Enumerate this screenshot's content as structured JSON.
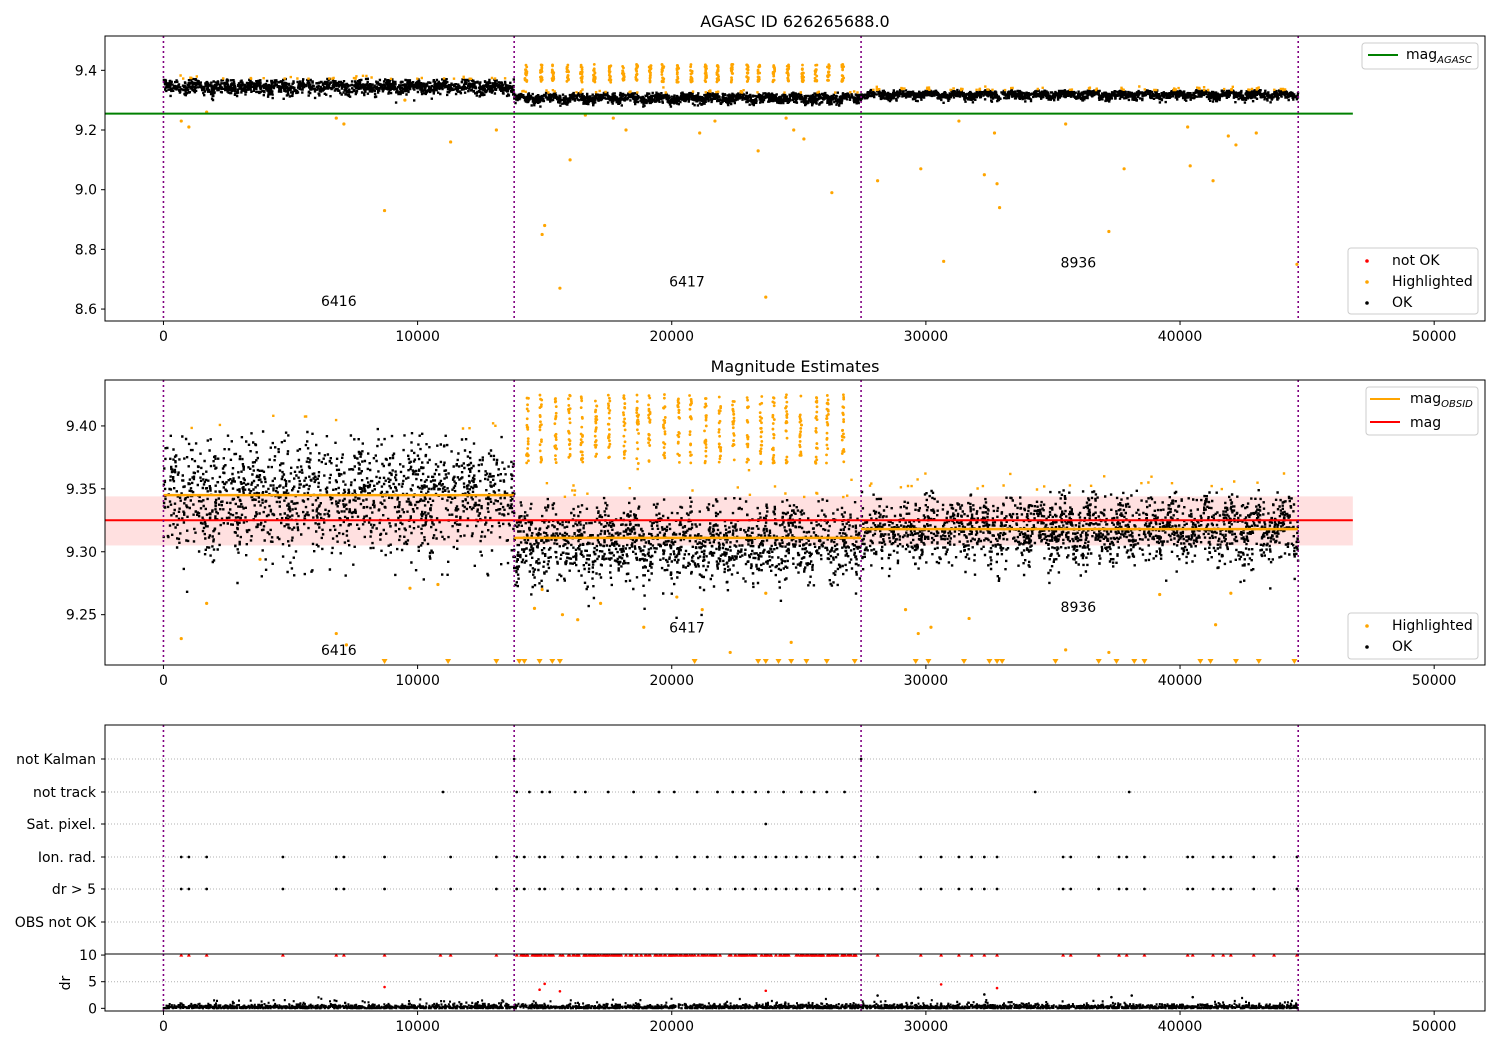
{
  "chart_data": [
    {
      "type": "scatter",
      "title": "AGASC ID 626265688.0",
      "xlabel": "",
      "ylabel": "",
      "xlim": [
        -2300,
        52000
      ],
      "ylim": [
        8.56,
        9.515
      ],
      "xticks": [
        "0",
        "10000",
        "20000",
        "30000",
        "40000",
        "50000"
      ],
      "xtick_values": [
        0,
        10000,
        20000,
        30000,
        40000,
        50000
      ],
      "yticks": [
        "8.6",
        "8.8",
        "9.0",
        "9.2",
        "9.4"
      ],
      "ytick_values": [
        8.6,
        8.8,
        9.0,
        9.2,
        9.4
      ],
      "obs_boundaries": [
        0,
        13800,
        27450,
        44650
      ],
      "obsids": [
        {
          "label": "6416",
          "x": 6900,
          "y": 8.61
        },
        {
          "label": "6417",
          "x": 20600,
          "y": 8.675
        },
        {
          "label": "8936",
          "x": 36000,
          "y": 8.74
        }
      ],
      "segments": [
        {
          "x0": 0,
          "x1": 13800,
          "center": 9.345,
          "spread": 0.022
        },
        {
          "x0": 13800,
          "x1": 27450,
          "center": 9.307,
          "spread": 0.015
        },
        {
          "x0": 27450,
          "x1": 44650,
          "center": 9.318,
          "spread": 0.013
        }
      ],
      "mag_agasc": 9.255,
      "highlighted_points": [
        [
          700,
          9.23
        ],
        [
          1000,
          9.21
        ],
        [
          1700,
          9.26
        ],
        [
          6800,
          9.24
        ],
        [
          7100,
          9.22
        ],
        [
          8700,
          8.93
        ],
        [
          9500,
          9.3
        ],
        [
          11300,
          9.16
        ],
        [
          13100,
          9.2
        ],
        [
          14900,
          8.85
        ],
        [
          15000,
          8.88
        ],
        [
          15600,
          8.67
        ],
        [
          16000,
          9.1
        ],
        [
          16600,
          9.25
        ],
        [
          17700,
          9.24
        ],
        [
          18200,
          9.2
        ],
        [
          21100,
          9.19
        ],
        [
          21700,
          9.23
        ],
        [
          23400,
          9.13
        ],
        [
          23700,
          8.64
        ],
        [
          24500,
          9.24
        ],
        [
          24800,
          9.2
        ],
        [
          25200,
          9.17
        ],
        [
          26300,
          8.99
        ],
        [
          28100,
          9.03
        ],
        [
          29800,
          9.07
        ],
        [
          30700,
          8.76
        ],
        [
          31300,
          9.23
        ],
        [
          32300,
          9.05
        ],
        [
          32700,
          9.19
        ],
        [
          32800,
          9.02
        ],
        [
          32900,
          8.94
        ],
        [
          35500,
          9.22
        ],
        [
          37200,
          8.86
        ],
        [
          37800,
          9.07
        ],
        [
          40300,
          9.21
        ],
        [
          40400,
          9.08
        ],
        [
          41300,
          9.03
        ],
        [
          41900,
          9.18
        ],
        [
          42200,
          9.15
        ],
        [
          43000,
          9.19
        ],
        [
          44600,
          8.75
        ]
      ],
      "legend_lines": [
        {
          "name": "mag",
          "sub": "AGASC",
          "color": "#008000"
        }
      ],
      "legend_points": [
        {
          "name": "not OK",
          "color": "#ff0000"
        },
        {
          "name": "Highlighted",
          "color": "#ffa500"
        },
        {
          "name": "OK",
          "color": "#000000"
        }
      ]
    },
    {
      "type": "scatter",
      "title": "Magnitude Estimates",
      "xlabel": "",
      "ylabel": "",
      "xlim": [
        -2300,
        52000
      ],
      "ylim": [
        9.21,
        9.4365
      ],
      "xticks": [
        "0",
        "10000",
        "20000",
        "30000",
        "40000",
        "50000"
      ],
      "xtick_values": [
        0,
        10000,
        20000,
        30000,
        40000,
        50000
      ],
      "yticks": [
        "9.25",
        "9.30",
        "9.35",
        "9.40"
      ],
      "ytick_values": [
        9.25,
        9.3,
        9.35,
        9.4
      ],
      "obs_boundaries": [
        0,
        13800,
        27450,
        44650
      ],
      "obsids": [
        {
          "label": "6416",
          "x": 6900,
          "y": 9.218
        },
        {
          "label": "6417",
          "x": 20600,
          "y": 9.236
        },
        {
          "label": "8936",
          "x": 36000,
          "y": 9.252
        }
      ],
      "segments": [
        {
          "x0": 0,
          "x1": 13800,
          "center": 9.345,
          "spread": 0.022
        },
        {
          "x0": 13800,
          "x1": 27450,
          "center": 9.307,
          "spread": 0.015
        },
        {
          "x0": 27450,
          "x1": 44650,
          "center": 9.318,
          "spread": 0.013
        }
      ],
      "mag_obsid": [
        {
          "x0": 0,
          "x1": 13800,
          "value": 9.345
        },
        {
          "x0": 13800,
          "x1": 27450,
          "value": 9.311
        },
        {
          "x0": 27450,
          "x1": 44650,
          "value": 9.318
        }
      ],
      "mag": 9.325,
      "mag_band": [
        9.305,
        9.344
      ],
      "mag_range": [
        -2300,
        46800
      ],
      "highlighted_points": [
        [
          700,
          9.231
        ],
        [
          1700,
          9.259
        ],
        [
          3800,
          9.294
        ],
        [
          6800,
          9.235
        ],
        [
          7200,
          9.226
        ],
        [
          9700,
          9.271
        ],
        [
          10800,
          9.274
        ],
        [
          14600,
          9.255
        ],
        [
          14900,
          9.27
        ],
        [
          15700,
          9.25
        ],
        [
          16300,
          9.246
        ],
        [
          17200,
          9.259
        ],
        [
          18900,
          9.24
        ],
        [
          20200,
          9.264
        ],
        [
          21200,
          9.254
        ],
        [
          22300,
          9.22
        ],
        [
          23700,
          9.267
        ],
        [
          24700,
          9.228
        ],
        [
          29200,
          9.254
        ],
        [
          29700,
          9.235
        ],
        [
          30200,
          9.24
        ],
        [
          31700,
          9.247
        ],
        [
          35500,
          9.222
        ],
        [
          37200,
          9.22
        ],
        [
          39200,
          9.266
        ],
        [
          41400,
          9.242
        ],
        [
          42000,
          9.267
        ]
      ],
      "clipped_points": [
        8700,
        11200,
        13100,
        14000,
        14200,
        14800,
        15300,
        15600,
        20900,
        23400,
        23700,
        24200,
        24700,
        25300,
        26100,
        27200,
        29600,
        30100,
        31500,
        32500,
        32800,
        33000,
        35100,
        36800,
        37500,
        38200,
        38600,
        40800,
        41200,
        42200,
        43100,
        44500
      ],
      "legend_lines": [
        {
          "name": "mag",
          "sub": "OBSID",
          "color": "#ffa500"
        },
        {
          "name": "mag",
          "sub": "",
          "color": "#ff0000"
        }
      ],
      "legend_points": [
        {
          "name": "Highlighted",
          "color": "#ffa500"
        },
        {
          "name": "OK",
          "color": "#000000"
        }
      ]
    },
    {
      "type": "scatter",
      "title": "",
      "xlim": [
        -2300,
        52000
      ],
      "xticks": [
        "0",
        "10000",
        "20000",
        "30000",
        "40000",
        "50000"
      ],
      "xtick_values": [
        0,
        10000,
        20000,
        30000,
        40000,
        50000
      ],
      "obs_boundaries": [
        0,
        13800,
        27450,
        44650
      ],
      "flag_labels": [
        "not Kalman",
        "not track",
        "Sat. pixel.",
        "Ion. rad.",
        "dr > 5",
        "OBS not OK"
      ],
      "flag_events": {
        "not Kalman": [
          13800,
          27450
        ],
        "not track": [
          11000,
          13900,
          14400,
          14900,
          15200,
          16200,
          16600,
          17500,
          18500,
          19500,
          20100,
          21000,
          21800,
          22400,
          22800,
          23300,
          23800,
          24400,
          25100,
          25600,
          26100,
          26800,
          34300,
          38000
        ],
        "Sat. pixel.": [
          23700
        ],
        "Ion. rad.": [
          700,
          1000,
          1700,
          4700,
          6800,
          7100,
          8700,
          11300,
          13100,
          13900,
          14200,
          14800,
          15000,
          15700,
          16300,
          16800,
          17200,
          17700,
          18200,
          18800,
          19400,
          20200,
          20900,
          21400,
          21900,
          22500,
          22800,
          23300,
          23700,
          24100,
          24500,
          24900,
          25300,
          25800,
          26200,
          26700,
          27200,
          28100,
          29800,
          30600,
          31300,
          31800,
          32300,
          32800,
          35400,
          35700,
          36800,
          37600,
          37900,
          38600,
          40300,
          40500,
          41300,
          41700,
          42000,
          42900,
          43700,
          44600
        ],
        "dr > 5": [
          700,
          1000,
          1700,
          4700,
          6800,
          7100,
          8700,
          11300,
          13100,
          13900,
          14200,
          14800,
          15000,
          15700,
          16300,
          16800,
          17200,
          17700,
          18200,
          18800,
          19400,
          20200,
          20900,
          21400,
          21900,
          22500,
          22800,
          23300,
          23700,
          24100,
          24500,
          24900,
          25300,
          25800,
          26200,
          26700,
          27200,
          28100,
          29800,
          30600,
          31300,
          31800,
          32300,
          32800,
          35400,
          35700,
          36800,
          37600,
          37900,
          38600,
          40300,
          40500,
          41300,
          41700,
          42000,
          42900,
          43700,
          44600
        ],
        "OBS not OK": []
      }
    },
    {
      "type": "scatter",
      "title": "",
      "xlabel": "",
      "ylabel": "dr",
      "xlim": [
        -2300,
        52000
      ],
      "ylim": [
        -0.5,
        10.2
      ],
      "xticks": [
        "0",
        "10000",
        "20000",
        "30000",
        "40000",
        "50000"
      ],
      "xtick_values": [
        0,
        10000,
        20000,
        30000,
        40000,
        50000
      ],
      "yticks": [
        "0",
        "5",
        "10"
      ],
      "ytick_values": [
        0,
        5,
        10
      ],
      "obs_boundaries": [
        0,
        13800,
        27450,
        44650
      ],
      "dr_end": 44650,
      "dr_clipped_points": [
        700,
        1000,
        1700,
        4700,
        6800,
        7100,
        8700,
        10900,
        11300,
        13100,
        13900,
        14200,
        14800,
        15000,
        15700,
        16300,
        16800,
        17200,
        17700,
        18200,
        18800,
        19400,
        20200,
        20900,
        21400,
        21900,
        22500,
        22800,
        23300,
        23700,
        24100,
        24500,
        24900,
        25300,
        25800,
        26200,
        26700,
        27200,
        28100,
        29800,
        30600,
        31300,
        31800,
        32300,
        32800,
        35400,
        35700,
        36800,
        37600,
        37900,
        38600,
        40300,
        40500,
        41300,
        41700,
        42000,
        42900,
        43700,
        44600
      ],
      "dr_red_points": [
        [
          8700,
          4.0
        ],
        [
          14800,
          3.5
        ],
        [
          15000,
          4.6
        ],
        [
          15600,
          3.2
        ],
        [
          23700,
          3.3
        ],
        [
          30600,
          4.5
        ],
        [
          32800,
          3.8
        ]
      ],
      "dr_high_black": [
        [
          28100,
          2.4
        ],
        [
          29700,
          2.0
        ],
        [
          32300,
          2.6
        ],
        [
          37300,
          2.1
        ],
        [
          38100,
          2.4
        ],
        [
          40500,
          2.1
        ]
      ]
    }
  ]
}
